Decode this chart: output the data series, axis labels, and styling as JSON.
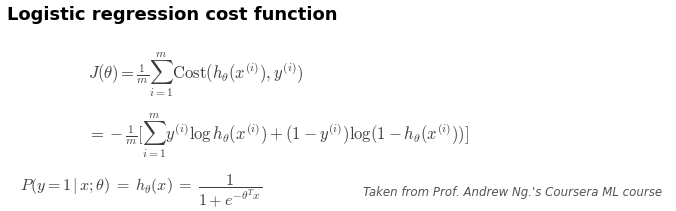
{
  "title": "Logistic regression cost function",
  "caption": "Taken from Prof. Andrew Ng.'s Coursera ML course",
  "bg_color": "#ffffff",
  "title_color": "#000000",
  "eq_color": "#3d3d3d",
  "caption_color": "#555555",
  "title_fontsize": 13,
  "eq_fontsize": 12,
  "caption_fontsize": 8.5
}
